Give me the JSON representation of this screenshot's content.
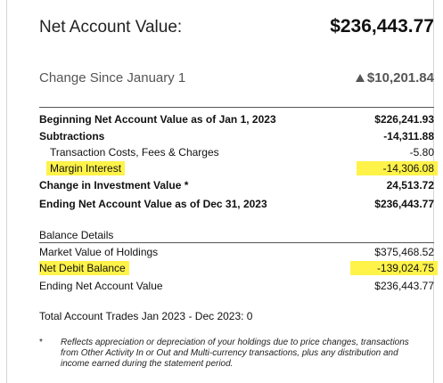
{
  "summary": {
    "net_account_value_label": "Net Account Value:",
    "net_account_value": "$236,443.77",
    "change_label": "Change Since January 1",
    "change_value": "$10,201.84"
  },
  "statement": {
    "rows": [
      {
        "label": "Beginning Net Account Value as of Jan 1, 2023",
        "value": "$226,241.93"
      },
      {
        "label": "Subtractions",
        "value": "-14,311.88"
      },
      {
        "label": "Transaction Costs, Fees & Charges",
        "value": "-5.80"
      },
      {
        "label": "Margin Interest",
        "value": "-14,306.08"
      },
      {
        "label": "Change in Investment Value *",
        "value": "24,513.72"
      },
      {
        "label": "Ending Net Account Value as of Dec 31, 2023",
        "value": "$236,443.77"
      }
    ]
  },
  "balance": {
    "title": "Balance Details",
    "rows": [
      {
        "label": "Market Value of Holdings",
        "value": "$375,468.52"
      },
      {
        "label": "Net Debit Balance",
        "value": "-139,024.75"
      },
      {
        "label": "Ending Net Account Value",
        "value": "$236,443.77"
      }
    ]
  },
  "trades": {
    "text": "Total Account Trades Jan 2023 - Dec 2023: 0"
  },
  "footnote": {
    "marker": "*",
    "text": "Reflects appreciation or depreciation of your holdings due to price changes, transactions from Other Activity In or Out and Multi-currency transactions, plus any distribution and income earned during the statement period."
  },
  "colors": {
    "highlight": "#fff34a",
    "rule": "#555555"
  }
}
